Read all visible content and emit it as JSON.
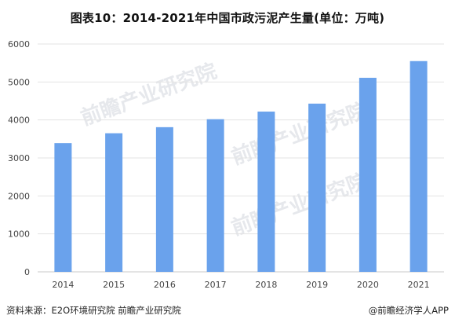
{
  "title": "图表10：2014-2021年中国市政污泥产生量(单位：万吨)",
  "footer": {
    "source": "资料来源：E2O环境研究院 前瞻产业研究院",
    "brand": "@前瞻经济学人APP"
  },
  "watermark": {
    "text": "前瞻产业研究院"
  },
  "colors": {
    "bar": "#6aa2ec",
    "grid": "#e3e3e3",
    "axis": "#c8c8c8",
    "tick_text": "#444444"
  },
  "chart_data": {
    "type": "bar",
    "categories": [
      "2014",
      "2015",
      "2016",
      "2017",
      "2018",
      "2019",
      "2020",
      "2021"
    ],
    "values": [
      3390,
      3650,
      3810,
      4020,
      4220,
      4430,
      5110,
      5550
    ],
    "title": "图表10：2014-2021年中国市政污泥产生量(单位：万吨)",
    "xlabel": "",
    "ylabel": "",
    "ylim": [
      0,
      6000
    ],
    "yticks": [
      0,
      1000,
      2000,
      3000,
      4000,
      5000,
      6000
    ],
    "grid": true,
    "legend": "none"
  }
}
